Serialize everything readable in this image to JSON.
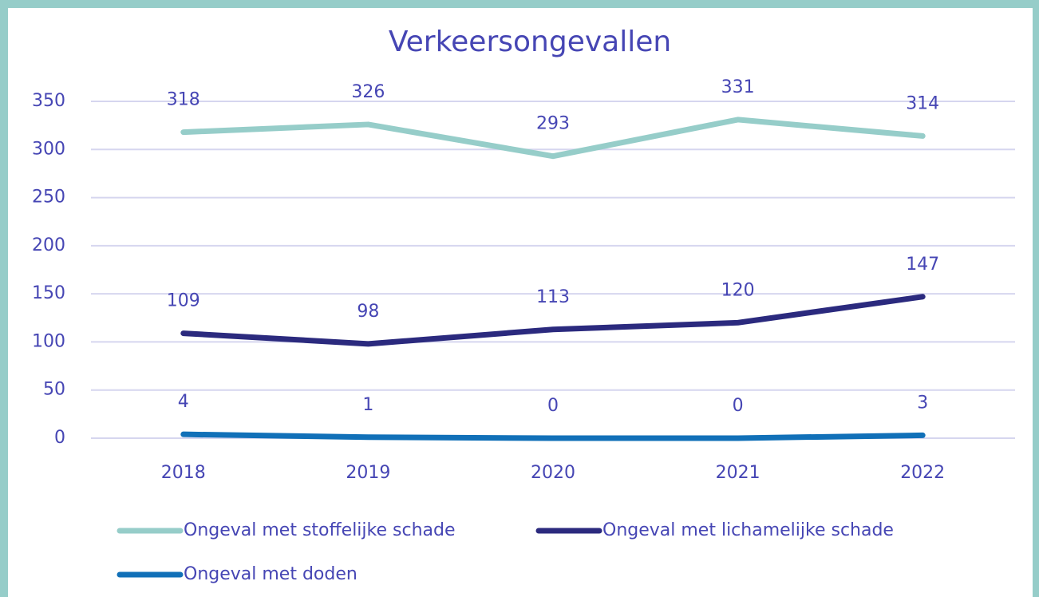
{
  "chart_data": {
    "type": "line",
    "title": "Verkeersongevallen",
    "categories": [
      "2018",
      "2019",
      "2020",
      "2021",
      "2022"
    ],
    "series": [
      {
        "name": "Ongeval met stoffelijke schade",
        "color": "#96cdc9",
        "values": [
          318,
          326,
          293,
          331,
          314
        ]
      },
      {
        "name": "Ongeval met lichamelijke schade",
        "color": "#2b2a7e",
        "values": [
          109,
          98,
          113,
          120,
          147
        ]
      },
      {
        "name": "Ongeval met doden",
        "color": "#1170b8",
        "values": [
          4,
          1,
          0,
          0,
          3
        ]
      }
    ],
    "ylim": [
      0,
      350
    ],
    "yticks": [
      0,
      50,
      100,
      150,
      200,
      250,
      300,
      350
    ],
    "grid": true,
    "legend": "bottom"
  }
}
